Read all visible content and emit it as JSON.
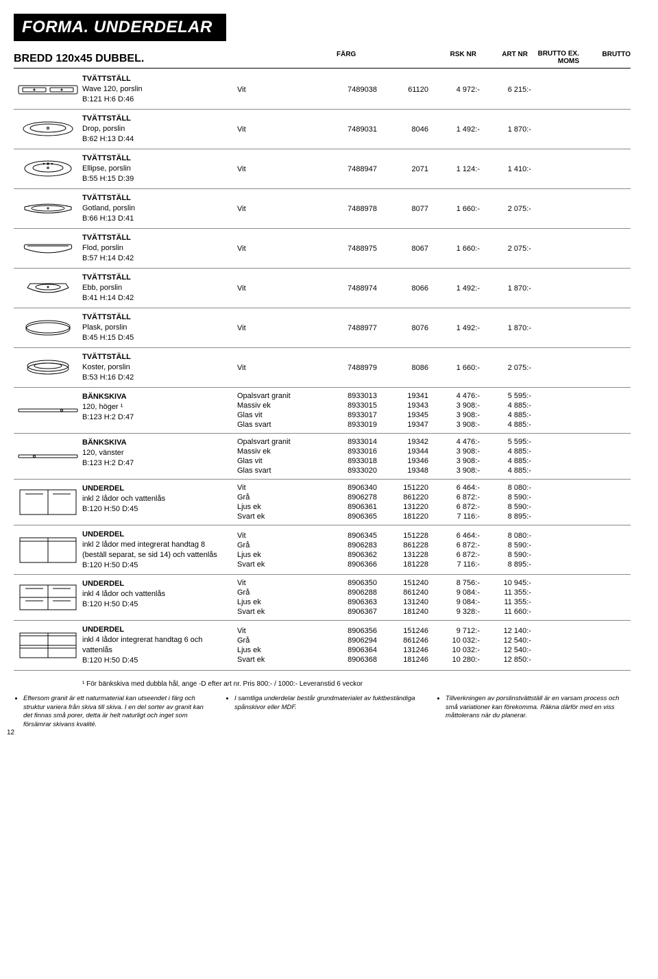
{
  "title": "FORMA. UNDERDELAR",
  "subhead_prefix": "BREDD ",
  "subhead_size": "120x45",
  "subhead_suffix": "  DUBBEL.",
  "headers": {
    "farg": "FÄRG",
    "rsk": "RSK NR",
    "art": "ART NR",
    "exmoms_l1": "BRUTTO EX.",
    "exmoms_l2": "MOMS",
    "brutto": "BRUTTO"
  },
  "rows": [
    {
      "thumb": "sink_top_double",
      "name": "TVÄTTSTÄLL",
      "line2": "Wave 120, porslin",
      "line3": "B:121 H:6 D:46",
      "variants": [
        {
          "farg": "Vit",
          "rsk": "7489038",
          "art": "61120",
          "exm": "4 972:-",
          "br": "6 215:-"
        }
      ]
    },
    {
      "thumb": "sink_drop",
      "name": "TVÄTTSTÄLL",
      "line2": "Drop, porslin",
      "line3": "B:62 H:13 D:44",
      "variants": [
        {
          "farg": "Vit",
          "rsk": "7489031",
          "art": "8046",
          "exm": "1 492:-",
          "br": "1 870:-"
        }
      ]
    },
    {
      "thumb": "sink_ellipse",
      "name": "TVÄTTSTÄLL",
      "line2": "Ellipse, porslin",
      "line3": "B:55 H:15 D:39",
      "variants": [
        {
          "farg": "Vit",
          "rsk": "7488947",
          "art": "2071",
          "exm": "1 124:-",
          "br": "1 410:-"
        }
      ]
    },
    {
      "thumb": "sink_gotland",
      "name": "TVÄTTSTÄLL",
      "line2": "Gotland, porslin",
      "line3": "B:66 H:13 D:41",
      "variants": [
        {
          "farg": "Vit",
          "rsk": "7488978",
          "art": "8077",
          "exm": "1 660:-",
          "br": "2 075:-"
        }
      ]
    },
    {
      "thumb": "sink_flod",
      "name": "TVÄTTSTÄLL",
      "line2": "Flod, porslin",
      "line3": "B:57 H:14 D:42",
      "variants": [
        {
          "farg": "Vit",
          "rsk": "7488975",
          "art": "8067",
          "exm": "1 660:-",
          "br": "2 075:-"
        }
      ]
    },
    {
      "thumb": "sink_ebb",
      "name": "TVÄTTSTÄLL",
      "line2": "Ebb, porslin",
      "line3": "B:41 H:14 D:42",
      "variants": [
        {
          "farg": "Vit",
          "rsk": "7488974",
          "art": "8066",
          "exm": "1 492:-",
          "br": "1 870:-"
        }
      ]
    },
    {
      "thumb": "sink_plask",
      "name": "TVÄTTSTÄLL",
      "line2": "Plask, porslin",
      "line3": "B:45 H:15 D:45",
      "variants": [
        {
          "farg": "Vit",
          "rsk": "7488977",
          "art": "8076",
          "exm": "1 492:-",
          "br": "1 870:-"
        }
      ]
    },
    {
      "thumb": "sink_koster",
      "name": "TVÄTTSTÄLL",
      "line2": "Koster, porslin",
      "line3": "B:53 H:16 D:42",
      "variants": [
        {
          "farg": "Vit",
          "rsk": "7488979",
          "art": "8086",
          "exm": "1 660:-",
          "br": "2 075:-"
        }
      ]
    },
    {
      "thumb": "slab_r",
      "name": "BÄNKSKIVA",
      "line2": "120, höger ¹",
      "line3": "B:123 H:2 D:47",
      "variants": [
        {
          "farg": "Opalsvart granit",
          "rsk": "8933013",
          "art": "19341",
          "exm": "4 476:-",
          "br": "5 595:-"
        },
        {
          "farg": "Massiv ek",
          "rsk": "8933015",
          "art": "19343",
          "exm": "3 908:-",
          "br": "4 885:-"
        },
        {
          "farg": "Glas vit",
          "rsk": "8933017",
          "art": "19345",
          "exm": "3 908:-",
          "br": "4 885:-"
        },
        {
          "farg": "Glas svart",
          "rsk": "8933019",
          "art": "19347",
          "exm": "3 908:-",
          "br": "4 885:-"
        }
      ]
    },
    {
      "thumb": "slab_l",
      "name": "BÄNKSKIVA",
      "line2": "120, vänster",
      "line3": "B:123 H:2 D:47",
      "variants": [
        {
          "farg": "Opalsvart granit",
          "rsk": "8933014",
          "art": "19342",
          "exm": "4 476:-",
          "br": "5 595:-"
        },
        {
          "farg": "Massiv ek",
          "rsk": "8933016",
          "art": "19344",
          "exm": "3 908:-",
          "br": "4 885:-"
        },
        {
          "farg": "Glas vit",
          "rsk": "8933018",
          "art": "19346",
          "exm": "3 908:-",
          "br": "4 885:-"
        },
        {
          "farg": "Glas svart",
          "rsk": "8933020",
          "art": "19348",
          "exm": "3 908:-",
          "br": "4 885:-"
        }
      ]
    },
    {
      "thumb": "cab_2",
      "name": "UNDERDEL",
      "line2": "inkl 2 lådor och vattenlås",
      "line3": "B:120 H:50 D:45",
      "variants": [
        {
          "farg": "Vit",
          "rsk": "8906340",
          "art": "151220",
          "exm": "6 464:-",
          "br": "8 080:-"
        },
        {
          "farg": "Grå",
          "rsk": "8906278",
          "art": "861220",
          "exm": "6 872:-",
          "br": "8 590:-"
        },
        {
          "farg": "Ljus ek",
          "rsk": "8906361",
          "art": "131220",
          "exm": "6 872:-",
          "br": "8 590:-"
        },
        {
          "farg": "Svart ek",
          "rsk": "8906365",
          "art": "181220",
          "exm": "7 116:-",
          "br": "8 895:-"
        }
      ]
    },
    {
      "thumb": "cab_2h",
      "name": "UNDERDEL",
      "line2": "inkl 2 lådor med integrerat handtag 8 (beställ separat, se sid 14) och vattenlås",
      "line3": "B:120 H:50 D:45",
      "variants": [
        {
          "farg": "Vit",
          "rsk": "8906345",
          "art": "151228",
          "exm": "6 464:-",
          "br": "8 080:-"
        },
        {
          "farg": "Grå",
          "rsk": "8906283",
          "art": "861228",
          "exm": "6 872:-",
          "br": "8 590:-"
        },
        {
          "farg": "Ljus ek",
          "rsk": "8906362",
          "art": "131228",
          "exm": "6 872:-",
          "br": "8 590:-"
        },
        {
          "farg": "Svart ek",
          "rsk": "8906366",
          "art": "181228",
          "exm": "7 116:-",
          "br": "8 895:-"
        }
      ]
    },
    {
      "thumb": "cab_4",
      "name": "UNDERDEL",
      "line2": "inkl 4 lådor och vattenlås",
      "line3": "B:120 H:50 D:45",
      "variants": [
        {
          "farg": "Vit",
          "rsk": "8906350",
          "art": "151240",
          "exm": "8 756:-",
          "br": "10 945:-"
        },
        {
          "farg": "Grå",
          "rsk": "8906288",
          "art": "861240",
          "exm": "9 084:-",
          "br": "11 355:-"
        },
        {
          "farg": "Ljus ek",
          "rsk": "8906363",
          "art": "131240",
          "exm": "9 084:-",
          "br": "11 355:-"
        },
        {
          "farg": "Svart ek",
          "rsk": "8906367",
          "art": "181240",
          "exm": "9 328:-",
          "br": "11 660:-"
        }
      ]
    },
    {
      "thumb": "cab_4h",
      "name": "UNDERDEL",
      "line2": "inkl 4 lådor integrerat handtag 6 och vattenlås",
      "line3": "B:120 H:50 D:45",
      "variants": [
        {
          "farg": "Vit",
          "rsk": "8906356",
          "art": "151246",
          "exm": "9 712:-",
          "br": "12 140:-"
        },
        {
          "farg": "Grå",
          "rsk": "8906294",
          "art": "861246",
          "exm": "10 032:-",
          "br": "12 540:-"
        },
        {
          "farg": "Ljus ek",
          "rsk": "8906364",
          "art": "131246",
          "exm": "10 032:-",
          "br": "12 540:-"
        },
        {
          "farg": "Svart ek",
          "rsk": "8906368",
          "art": "181246",
          "exm": "10 280:-",
          "br": "12 850:-"
        }
      ]
    }
  ],
  "footnote": "¹ För bänkskiva med dubbla hål, ange -D efter art nr. Pris 800:- / 1000:- Leveranstid 6 veckor",
  "footer": {
    "col1": "Eftersom granit är ett naturmaterial kan utseendet i färg och struktur variera från skiva till skiva. I en del sorter av granit kan det finnas små porer, detta är helt naturligt och inget som försämrar skivans kvalité.",
    "col2": "I samtliga underdelar består grundmaterialet av fuktbeständiga spånskivor eller MDF.",
    "col3": "Tillverkningen av porslinstvättställ är en varsam process och små variationer kan förekomma. Räkna därför med en viss måttolerans när du planerar."
  },
  "page_number": "12",
  "svg": {
    "stroke": "#000000",
    "fill": "#ffffff"
  }
}
